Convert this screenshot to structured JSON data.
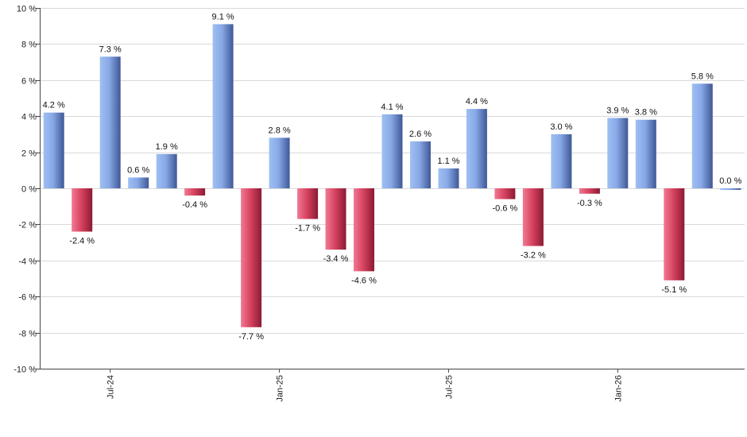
{
  "chart_data": {
    "type": "bar",
    "title": "",
    "xlabel": "",
    "ylabel": "",
    "ylim": [
      -10,
      10
    ],
    "y_ticks": [
      "10 %",
      "8 %",
      "6 %",
      "4 %",
      "2 %",
      "0 %",
      "-2 %",
      "-4 %",
      "-6 %",
      "-8 %",
      "-10 %"
    ],
    "y_tick_values": [
      10,
      8,
      6,
      4,
      2,
      0,
      -2,
      -4,
      -6,
      -8,
      -10
    ],
    "x_ticks": [
      {
        "label": "Jul-24",
        "index": 2
      },
      {
        "label": "Jan-25",
        "index": 8
      },
      {
        "label": "Jul-25",
        "index": 14
      },
      {
        "label": "Jan-26",
        "index": 20
      }
    ],
    "values": [
      4.2,
      -2.4,
      7.3,
      0.6,
      1.9,
      -0.4,
      9.1,
      -7.7,
      2.8,
      -1.7,
      -3.4,
      -4.6,
      4.1,
      2.6,
      1.1,
      4.4,
      -0.6,
      -3.2,
      3.0,
      -0.3,
      3.9,
      3.8,
      -5.1,
      5.8,
      0.0
    ],
    "value_labels": [
      "4.2 %",
      "-2.4 %",
      "7.3 %",
      "0.6 %",
      "1.9 %",
      "-0.4 %",
      "9.1 %",
      "-7.7 %",
      "2.8 %",
      "-1.7 %",
      "-3.4 %",
      "-4.6 %",
      "4.1 %",
      "2.6 %",
      "1.1 %",
      "4.4 %",
      "-0.6 %",
      "-3.2 %",
      "3.0 %",
      "-0.3 %",
      "3.9 %",
      "3.8 %",
      "-5.1 %",
      "5.8 %",
      "0.0 %"
    ],
    "grid": true,
    "colors": {
      "positive": "#6f8fd6",
      "negative": "#c8304f"
    }
  }
}
